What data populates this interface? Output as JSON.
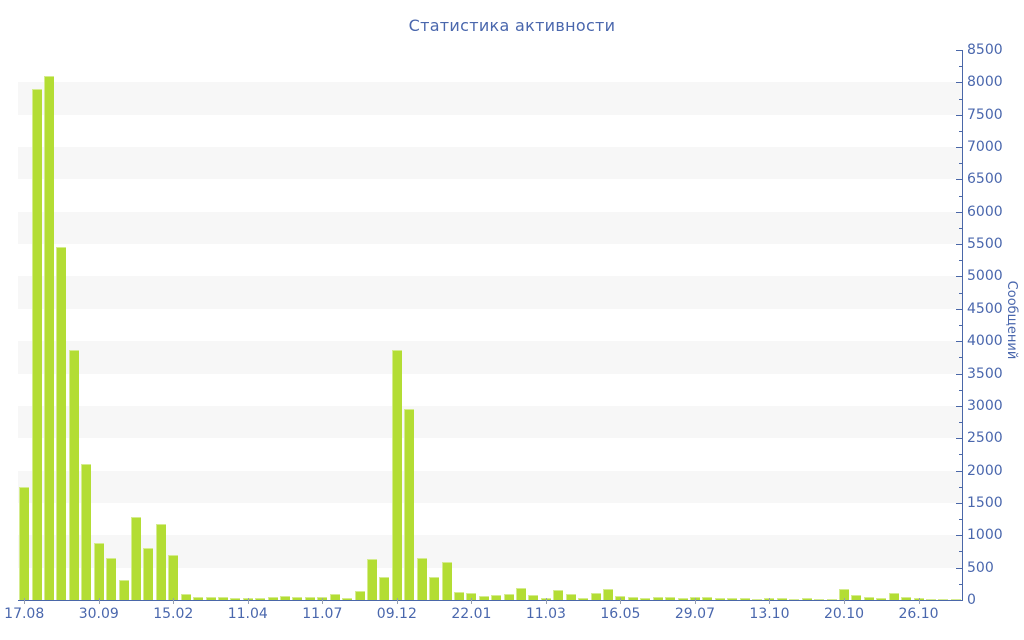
{
  "header": {
    "title": "Статистика активности"
  },
  "chart_data": {
    "type": "bar",
    "title": "Статистика активности",
    "xlabel": "",
    "ylabel": "Сообщений",
    "ylim": [
      0,
      8500
    ],
    "y_major_step": 500,
    "y_minor_step": 250,
    "grid": "alternating-horizontal-bands",
    "legend_position": "none",
    "y_axis_side": "right",
    "x_tick_labels": [
      "17.08",
      "30.09",
      "15.02",
      "11.04",
      "11.07",
      "09.12",
      "22.01",
      "11.03",
      "16.05",
      "29.07",
      "13.10",
      "20.10",
      "26.10"
    ],
    "x_tick_every": 6,
    "values": [
      1750,
      7900,
      8100,
      5450,
      3860,
      2100,
      880,
      655,
      305,
      1280,
      810,
      1170,
      690,
      100,
      45,
      40,
      40,
      35,
      30,
      35,
      50,
      65,
      50,
      40,
      40,
      95,
      35,
      140,
      630,
      350,
      3870,
      2950,
      655,
      360,
      580,
      120,
      110,
      55,
      85,
      95,
      190,
      75,
      35,
      150,
      95,
      25,
      110,
      165,
      60,
      45,
      25,
      45,
      40,
      30,
      45,
      40,
      25,
      30,
      25,
      20,
      25,
      25,
      20,
      25,
      20,
      12,
      165,
      70,
      50,
      35,
      105,
      50,
      25,
      18,
      18,
      12
    ],
    "colors": {
      "bar": "#b3dd34",
      "bar_highlight": "rgba(255,255,255,0.45)",
      "band": "#f7f7f7",
      "axis": "#4a67a8",
      "text": "#4a67ad",
      "x_tick_mark": "#97a0b0",
      "background": "#ffffff"
    }
  }
}
